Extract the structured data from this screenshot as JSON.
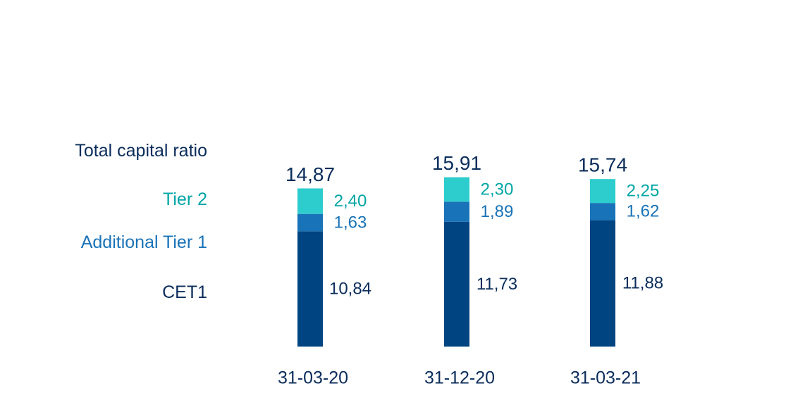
{
  "chart_data": {
    "type": "bar",
    "stacked": true,
    "categories": [
      "31-03-20",
      "31-12-20",
      "31-03-21"
    ],
    "series": [
      {
        "name": "CET1",
        "values": [
          10.84,
          11.73,
          11.88
        ],
        "labels": [
          "10,84",
          "11,73",
          "11,88"
        ],
        "color": "#004481",
        "label_color": "#0b2d5b"
      },
      {
        "name": "Additional Tier 1",
        "values": [
          1.63,
          1.89,
          1.62
        ],
        "labels": [
          "1,63",
          "1,89",
          "1,62"
        ],
        "color": "#1973b8",
        "label_color": "#1973b8"
      },
      {
        "name": "Tier 2",
        "values": [
          2.4,
          2.3,
          2.25
        ],
        "labels": [
          "2,40",
          "2,30",
          "2,25"
        ],
        "color": "#2dcccd",
        "label_color": "#02a5a5"
      }
    ],
    "totals": {
      "name": "Total capital ratio",
      "values": [
        14.87,
        15.91,
        15.74
      ],
      "labels": [
        "14,87",
        "15,91",
        "15,74"
      ],
      "color": "#0b2d5b"
    },
    "legend_placement": "left",
    "grid": false
  },
  "colors": {
    "total_label": "#0b2d5b",
    "axis_label": "#0b2d5b"
  }
}
